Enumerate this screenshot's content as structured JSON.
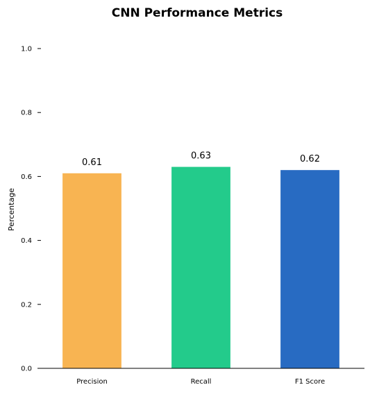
{
  "chart_data": {
    "type": "bar",
    "title": "CNN Performance Metrics",
    "xlabel": "",
    "ylabel": "Percentage",
    "categories": [
      "Precision",
      "Recall",
      "F1 Score"
    ],
    "values": [
      0.61,
      0.63,
      0.62
    ],
    "value_labels": [
      "0.61",
      "0.63",
      "0.62"
    ],
    "colors": [
      "#f8b452",
      "#23cb8b",
      "#286bc2"
    ],
    "ylim": [
      0,
      1.0
    ],
    "yticks": [
      0.0,
      0.2,
      0.4,
      0.6,
      0.8,
      1.0
    ],
    "ytick_labels": [
      "0.0",
      "0.2",
      "0.4",
      "0.6",
      "0.8",
      "1.0"
    ],
    "grid": false,
    "legend": "none"
  }
}
